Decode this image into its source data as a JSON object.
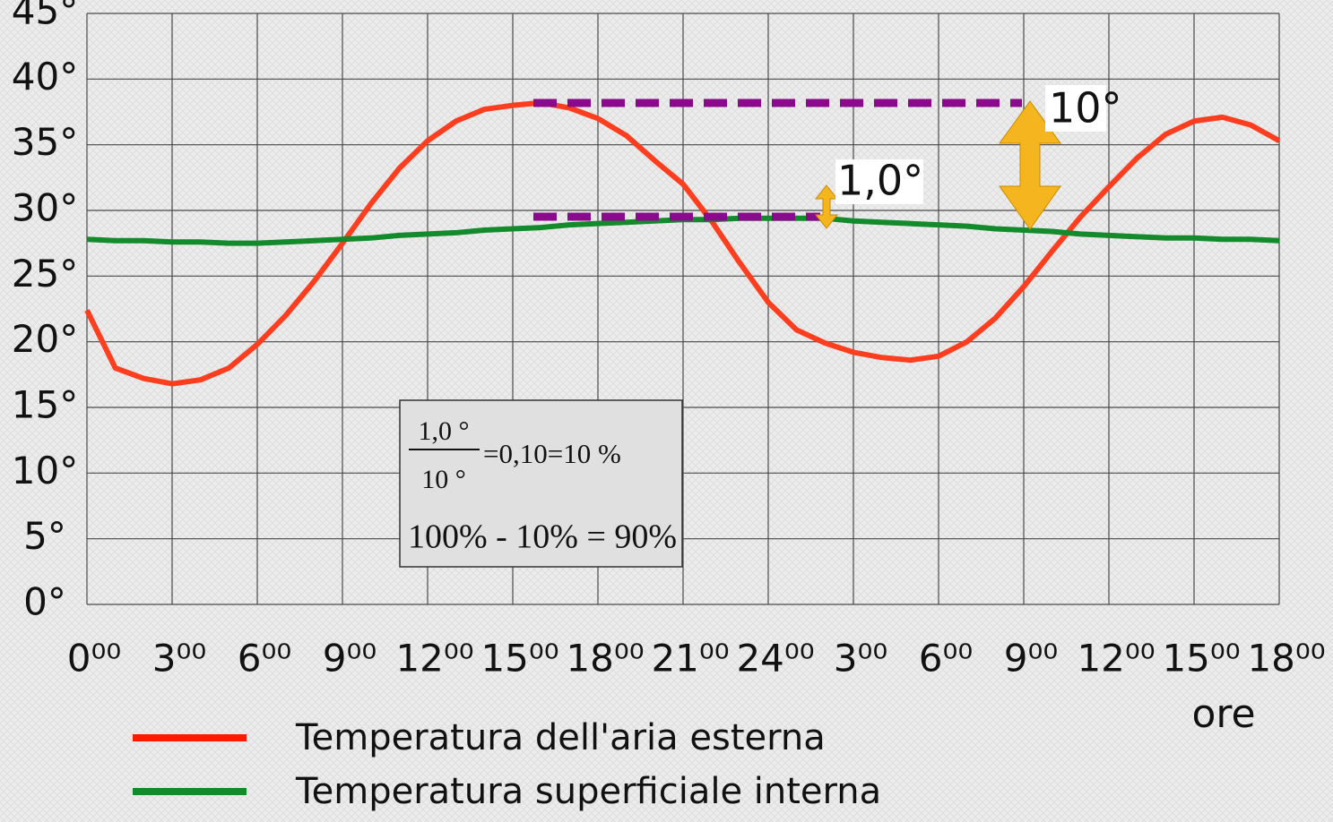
{
  "chart_data": {
    "type": "line",
    "xlabel": "ore",
    "x": [
      0,
      1,
      2,
      3,
      4,
      5,
      6,
      7,
      8,
      9,
      10,
      11,
      12,
      13,
      14,
      15,
      16,
      17,
      18,
      19,
      20,
      21,
      22,
      23,
      24,
      25,
      26,
      27,
      28,
      29,
      30,
      31,
      32,
      33,
      34,
      35,
      36,
      37,
      38,
      39,
      40,
      41,
      42
    ],
    "series": [
      {
        "name": "Temperatura dell'aria esterna",
        "color": "#ff3d1f",
        "legend_color": "#ff1a00",
        "values": [
          22.4,
          18.0,
          17.2,
          16.8,
          17.1,
          18.0,
          19.8,
          22,
          24.6,
          27.5,
          30.5,
          33.2,
          35.3,
          36.8,
          37.7,
          38,
          38.2,
          37.8,
          37,
          35.7,
          33.8,
          32,
          29.2,
          26,
          23,
          20.9,
          19.9,
          19.2,
          18.8,
          18.6,
          18.9,
          20,
          21.8,
          24.2,
          26.9,
          29.5,
          31.8,
          34,
          35.8,
          36.8,
          37.1,
          36.5,
          35.3
        ]
      },
      {
        "name": "Temperatura superficiale interna",
        "color": "#138a2b",
        "legend_color": "#138a2b",
        "values": [
          27.8,
          27.7,
          27.7,
          27.6,
          27.6,
          27.5,
          27.5,
          27.6,
          27.7,
          27.8,
          27.9,
          28.1,
          28.2,
          28.3,
          28.5,
          28.6,
          28.7,
          28.9,
          29,
          29.1,
          29.2,
          29.3,
          29.3,
          29.4,
          29.4,
          29.4,
          29.4,
          29.2,
          29.1,
          29,
          28.9,
          28.8,
          28.6,
          28.5,
          28.4,
          28.2,
          28.1,
          28,
          27.9,
          27.9,
          27.8,
          27.8,
          27.7
        ]
      }
    ],
    "xlim": [
      0,
      42
    ],
    "xticks": [
      {
        "value": 0,
        "label": "0⁰⁰"
      },
      {
        "value": 3,
        "label": "3⁰⁰"
      },
      {
        "value": 6,
        "label": "6⁰⁰"
      },
      {
        "value": 9,
        "label": "9⁰⁰"
      },
      {
        "value": 12,
        "label": "12⁰⁰"
      },
      {
        "value": 15,
        "label": "15⁰⁰"
      },
      {
        "value": 18,
        "label": "18⁰⁰"
      },
      {
        "value": 21,
        "label": "21⁰⁰"
      },
      {
        "value": 24,
        "label": "24⁰⁰"
      },
      {
        "value": 27,
        "label": "3⁰⁰"
      },
      {
        "value": 30,
        "label": "6⁰⁰"
      },
      {
        "value": 33,
        "label": "9⁰⁰"
      },
      {
        "value": 36,
        "label": "12⁰⁰"
      },
      {
        "value": 39,
        "label": "15⁰⁰"
      },
      {
        "value": 42,
        "label": "18⁰⁰"
      }
    ],
    "ylim": [
      0,
      45
    ],
    "yticks": [
      {
        "value": 0,
        "label": "0°"
      },
      {
        "value": 5,
        "label": "5°"
      },
      {
        "value": 10,
        "label": "10°"
      },
      {
        "value": 15,
        "label": "15°"
      },
      {
        "value": 20,
        "label": "20°"
      },
      {
        "value": 25,
        "label": "25°"
      },
      {
        "value": 30,
        "label": "30°"
      },
      {
        "value": 35,
        "label": "35°"
      },
      {
        "value": 40,
        "label": "40°"
      },
      {
        "value": 45,
        "label": "45°"
      }
    ],
    "grid": true,
    "annotations": {
      "big_delta": "10°",
      "small_delta": "1,0°",
      "fraction_numerator": "1,0 °",
      "fraction_denominator": "10 °",
      "fraction_result": "=0,10=10 %",
      "difference": "100% - 10% = 90%"
    }
  }
}
